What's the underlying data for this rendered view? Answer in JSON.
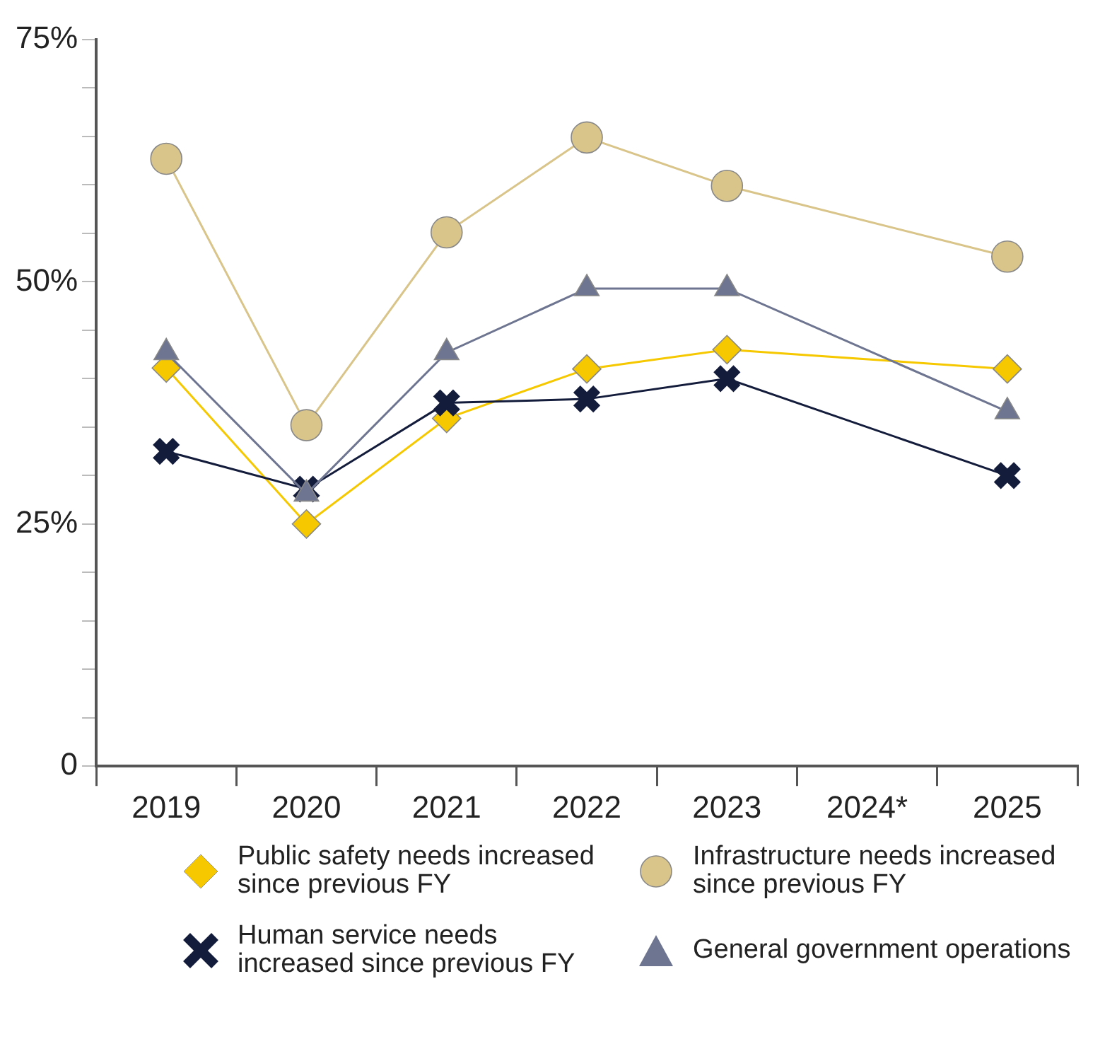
{
  "chart_data": {
    "type": "line",
    "categories": [
      "2019",
      "2020",
      "2021",
      "2022",
      "2023",
      "2024*",
      "2025"
    ],
    "series": [
      {
        "name": "Public safety needs increased since previous FY",
        "color": "#f5c800",
        "marker": "diamond",
        "values": [
          41.1,
          25.0,
          35.9,
          41.0,
          43.0,
          null,
          41.0
        ]
      },
      {
        "name": "Infrastructure needs increased since previous FY",
        "color": "#d9c48a",
        "marker": "circle",
        "values": [
          62.7,
          35.2,
          55.1,
          64.9,
          59.9,
          null,
          52.6
        ]
      },
      {
        "name": "Human service needs increased since previous FY",
        "color": "#141c3c",
        "marker": "cross",
        "values": [
          32.5,
          28.6,
          37.5,
          37.9,
          40.0,
          null,
          30.0
        ]
      },
      {
        "name": "General government operations",
        "color": "#6e7590",
        "marker": "triangle",
        "values": [
          42.7,
          28.1,
          42.7,
          49.3,
          49.3,
          null,
          36.6
        ]
      }
    ],
    "ylim": [
      0,
      75
    ],
    "yticks": [
      {
        "value": 0,
        "label": "0"
      },
      {
        "value": 5,
        "label": null
      },
      {
        "value": 10,
        "label": null
      },
      {
        "value": 15,
        "label": null
      },
      {
        "value": 20,
        "label": null
      },
      {
        "value": 25,
        "label": "25%"
      },
      {
        "value": 30,
        "label": null
      },
      {
        "value": 35,
        "label": null
      },
      {
        "value": 40,
        "label": null
      },
      {
        "value": 45,
        "label": null
      },
      {
        "value": 50,
        "label": "50%"
      },
      {
        "value": 55,
        "label": null
      },
      {
        "value": 60,
        "label": null
      },
      {
        "value": 65,
        "label": null
      },
      {
        "value": 70,
        "label": null
      },
      {
        "value": 75,
        "label": "75%"
      }
    ],
    "grid": false,
    "legend": "bottom"
  }
}
